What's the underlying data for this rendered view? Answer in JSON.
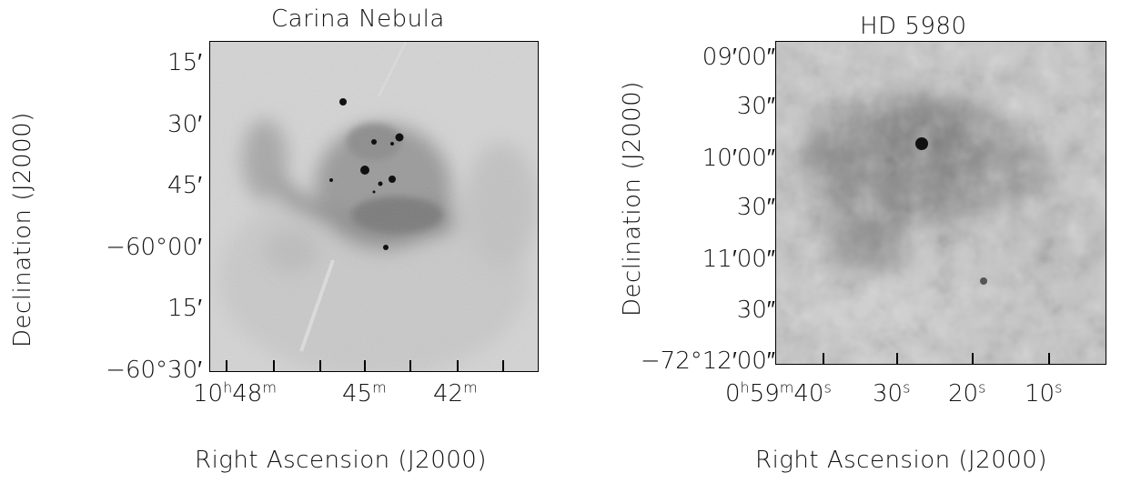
{
  "panels": [
    {
      "title": "Carina Nebula",
      "xlabel": "Right Ascension (J2000)",
      "ylabel": "Declination (J2000)",
      "yticks": [
        "15′",
        "30′",
        "45′",
        "−60°00′",
        "15′",
        "−60°30′"
      ],
      "xticks": [
        {
          "h": "10",
          "hu": "h",
          "m": "48",
          "mu": "m"
        },
        {
          "m": "45",
          "mu": "m"
        },
        {
          "m": "42",
          "mu": "m"
        }
      ]
    },
    {
      "title": "HD 5980",
      "xlabel": "Right Ascension (J2000)",
      "ylabel": "Declination (J2000)",
      "yticks": [
        "09′00″",
        "30″",
        "10′00″",
        "30″",
        "11′00″",
        "30″",
        "−72°12′00″"
      ],
      "xticks": [
        {
          "v": "0",
          "vu": "h",
          "v2": "59",
          "v2u": "m",
          "v3": "40",
          "v3u": "s"
        },
        {
          "v": "30",
          "vu": "s"
        },
        {
          "v": "20",
          "vu": "s"
        },
        {
          "v": "10",
          "vu": "s"
        }
      ]
    }
  ]
}
